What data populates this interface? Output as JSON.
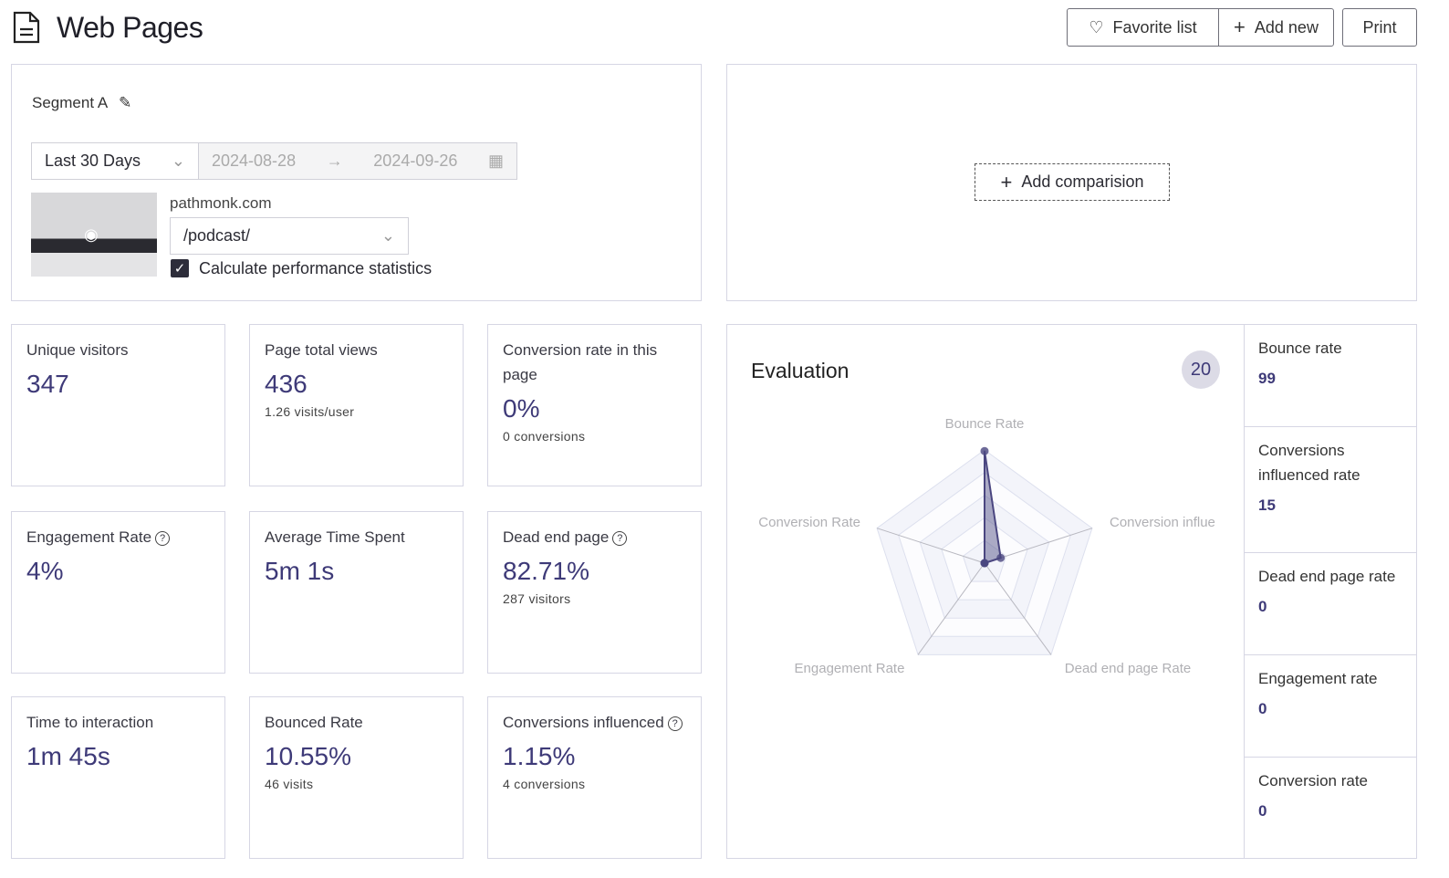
{
  "header": {
    "title": "Web Pages",
    "icon": "document-icon",
    "favorite_label": "Favorite list",
    "add_new_label": "Add new",
    "print_label": "Print"
  },
  "segment": {
    "name": "Segment A",
    "range": "Last 30 Days",
    "date_start": "2024-08-28",
    "date_end": "2024-09-26",
    "domain": "pathmonk.com",
    "page": "/podcast/",
    "checkbox_label": "Calculate performance statistics",
    "checkbox_checked": true
  },
  "comparison": {
    "add_label": "Add comparision"
  },
  "metrics": [
    {
      "label": "Unique visitors",
      "value": "347",
      "sub": "",
      "help": false
    },
    {
      "label": "Page total views",
      "value": "436",
      "sub": "1.26 visits/user",
      "help": false
    },
    {
      "label": "Conversion rate in this page",
      "value": "0%",
      "sub": "0 conversions",
      "help": false
    },
    {
      "label": "Engagement Rate",
      "value": "4%",
      "sub": "",
      "help": true
    },
    {
      "label": "Average Time Spent",
      "value": "5m 1s",
      "sub": "",
      "help": false
    },
    {
      "label": "Dead end page",
      "value": "82.71%",
      "sub": "287 visitors",
      "help": true
    },
    {
      "label": "Time to interaction",
      "value": "1m 45s",
      "sub": "",
      "help": false
    },
    {
      "label": "Bounced Rate",
      "value": "10.55%",
      "sub": "46 visits",
      "help": false
    },
    {
      "label": "Conversions influenced",
      "value": "1.15%",
      "sub": "4 conversions",
      "help": true
    }
  ],
  "evaluation": {
    "title": "Evaluation",
    "score": "20",
    "side": [
      {
        "label": "Bounce rate",
        "value": "99"
      },
      {
        "label": "Conversions influenced rate",
        "value": "15"
      },
      {
        "label": "Dead end page rate",
        "value": "0"
      },
      {
        "label": "Engagement rate",
        "value": "0"
      },
      {
        "label": "Conversion rate",
        "value": "0"
      }
    ]
  },
  "chart_data": {
    "type": "radar",
    "max": 100,
    "rings": 5,
    "axes": [
      "Bounce Rate",
      "Conversion influe",
      "Dead end page Rate",
      "Engagement Rate",
      "Conversion Rate"
    ],
    "values": [
      99,
      15,
      0,
      0,
      0
    ],
    "color": "#4a4680"
  }
}
